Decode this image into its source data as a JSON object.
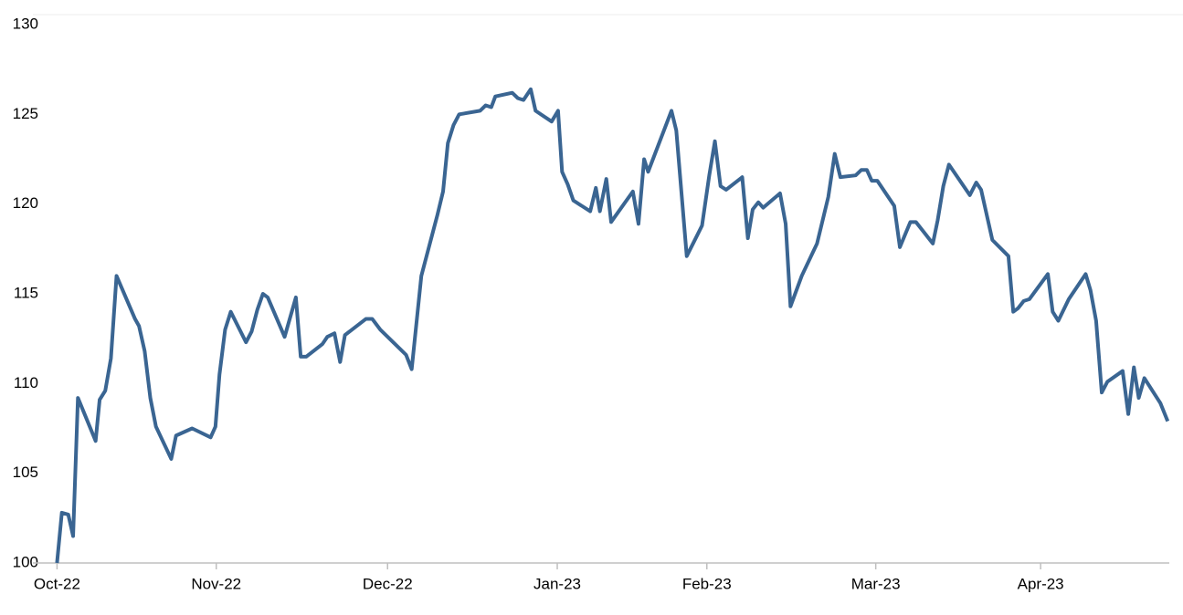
{
  "chart_data": {
    "type": "line",
    "color": "#3a6592",
    "x": [
      0,
      0.6,
      1.4,
      2.0,
      2.6,
      4.8,
      5.3,
      6.0,
      6.7,
      7.4,
      9.7,
      10.2,
      10.9,
      11.6,
      12.3,
      14.2,
      14.8,
      16.8,
      19.1,
      19.7,
      20.2,
      20.9,
      21.6,
      23.5,
      24.2,
      24.9,
      25.6,
      26.2,
      28.3,
      29.7,
      30.3,
      31.0,
      33.0,
      33.6,
      34.5,
      35.2,
      35.8,
      38.4,
      39.2,
      40.2,
      43.4,
      44.1,
      45.3,
      47.3,
      48.0,
      48.6,
      49.3,
      50.0,
      52.6,
      53.3,
      54.0,
      54.5,
      56.6,
      57.3,
      58.0,
      58.9,
      59.5,
      61.5,
      62.3,
      62.8,
      63.5,
      64.2,
      66.3,
      67.0,
      67.5,
      68.3,
      68.9,
      71.6,
      72.3,
      73.0,
      73.5,
      76.4,
      77.0,
      78.3,
      80.2,
      81.1,
      81.8,
      82.5,
      83.2,
      85.2,
      85.9,
      86.5,
      87.2,
      87.8,
      89.9,
      90.6,
      91.2,
      92.6,
      94.5,
      95.9,
      96.7,
      97.4,
      99.3,
      100.0,
      100.7,
      101.3,
      102.0,
      104.1,
      104.8,
      106.1,
      106.8,
      108.9,
      109.5,
      110.2,
      110.9,
      113.5,
      114.3,
      114.9,
      116.3,
      118.3,
      118.9,
      119.5,
      120.2,
      120.9,
      123.2,
      123.8,
      124.5,
      125.8,
      127.9,
      128.5,
      129.2,
      129.9,
      130.6,
      132.5,
      133.2,
      133.9,
      134.5,
      135.2,
      137.2,
      138.1
    ],
    "values": [
      100,
      102.8,
      102.7,
      101.5,
      109.2,
      106.8,
      109.1,
      109.6,
      111.4,
      116.0,
      113.6,
      113.2,
      111.8,
      109.2,
      107.6,
      105.8,
      107.1,
      107.5,
      107.0,
      107.6,
      110.5,
      113.0,
      114.0,
      112.3,
      112.9,
      114.1,
      115.0,
      114.8,
      112.6,
      114.8,
      111.5,
      111.5,
      112.2,
      112.6,
      112.8,
      111.2,
      112.7,
      113.6,
      113.6,
      113.0,
      111.6,
      110.8,
      116.0,
      119.4,
      120.7,
      123.4,
      124.4,
      125.0,
      125.2,
      125.5,
      125.4,
      126.0,
      126.2,
      125.9,
      125.8,
      126.4,
      125.2,
      124.6,
      125.2,
      121.8,
      121.1,
      120.2,
      119.6,
      120.9,
      119.6,
      121.4,
      119.0,
      120.7,
      118.9,
      122.5,
      121.8,
      125.2,
      124.1,
      117.1,
      118.8,
      121.6,
      123.5,
      121.0,
      120.8,
      121.5,
      118.1,
      119.7,
      120.1,
      119.8,
      120.6,
      118.9,
      114.3,
      116.0,
      117.8,
      120.4,
      122.8,
      121.5,
      121.6,
      121.9,
      121.9,
      121.3,
      121.3,
      119.9,
      117.6,
      119.0,
      119.0,
      117.8,
      119.1,
      121.0,
      122.2,
      120.5,
      121.2,
      120.8,
      118.0,
      117.1,
      114.0,
      114.2,
      114.6,
      114.7,
      116.1,
      114.0,
      113.5,
      114.7,
      116.1,
      115.2,
      113.5,
      109.5,
      110.1,
      110.7,
      108.3,
      110.9,
      109.2,
      110.3,
      108.9,
      107.9
    ],
    "xlim": [
      -3,
      138.3
    ],
    "xticks": [
      {
        "value": 0,
        "label": "Oct-22"
      },
      {
        "value": 19.8,
        "label": "Nov-22"
      },
      {
        "value": 41.1,
        "label": "Dec-22"
      },
      {
        "value": 62.2,
        "label": "Jan-23"
      },
      {
        "value": 80.8,
        "label": "Feb-23"
      },
      {
        "value": 101.8,
        "label": "Mar-23"
      },
      {
        "value": 122.3,
        "label": "Apr-23"
      }
    ],
    "ylim": [
      100,
      130
    ],
    "yticks": [
      100,
      105,
      110,
      115,
      120,
      125,
      130
    ]
  }
}
